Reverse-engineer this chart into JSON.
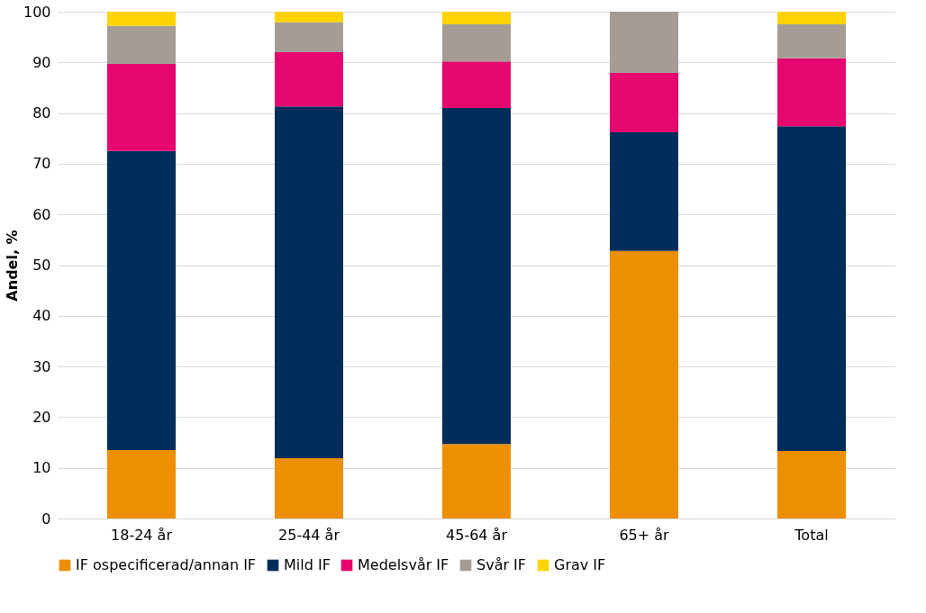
{
  "chart_data": {
    "type": "bar",
    "stacked": true,
    "ylabel": "Andel, %",
    "categories": [
      "18-24 år",
      "25-44 år",
      "45-64 år",
      "65+ år",
      "Total"
    ],
    "series": [
      {
        "name": "IF ospecificerad/annan IF",
        "color": "#ec8f00",
        "values": [
          13.5,
          11.9,
          14.7,
          52.8,
          13.3
        ]
      },
      {
        "name": "Mild IF",
        "color": "#002d5a",
        "values": [
          59.0,
          69.4,
          66.3,
          23.4,
          64.1
        ]
      },
      {
        "name": "Medelsvår IF",
        "color": "#e5066f",
        "values": [
          17.2,
          10.7,
          9.2,
          11.7,
          13.4
        ]
      },
      {
        "name": "Svår IF",
        "color": "#a59d95",
        "values": [
          7.5,
          5.9,
          7.3,
          12.1,
          6.7
        ]
      },
      {
        "name": "Grav  IF",
        "color": "#ffd200",
        "values": [
          2.8,
          2.1,
          2.5,
          0,
          2.5
        ]
      }
    ],
    "ylim": [
      0,
      100
    ],
    "yticks": [
      0,
      10,
      20,
      30,
      40,
      50,
      60,
      70,
      80,
      90,
      100
    ],
    "grid": "y",
    "legend": "bottom"
  }
}
